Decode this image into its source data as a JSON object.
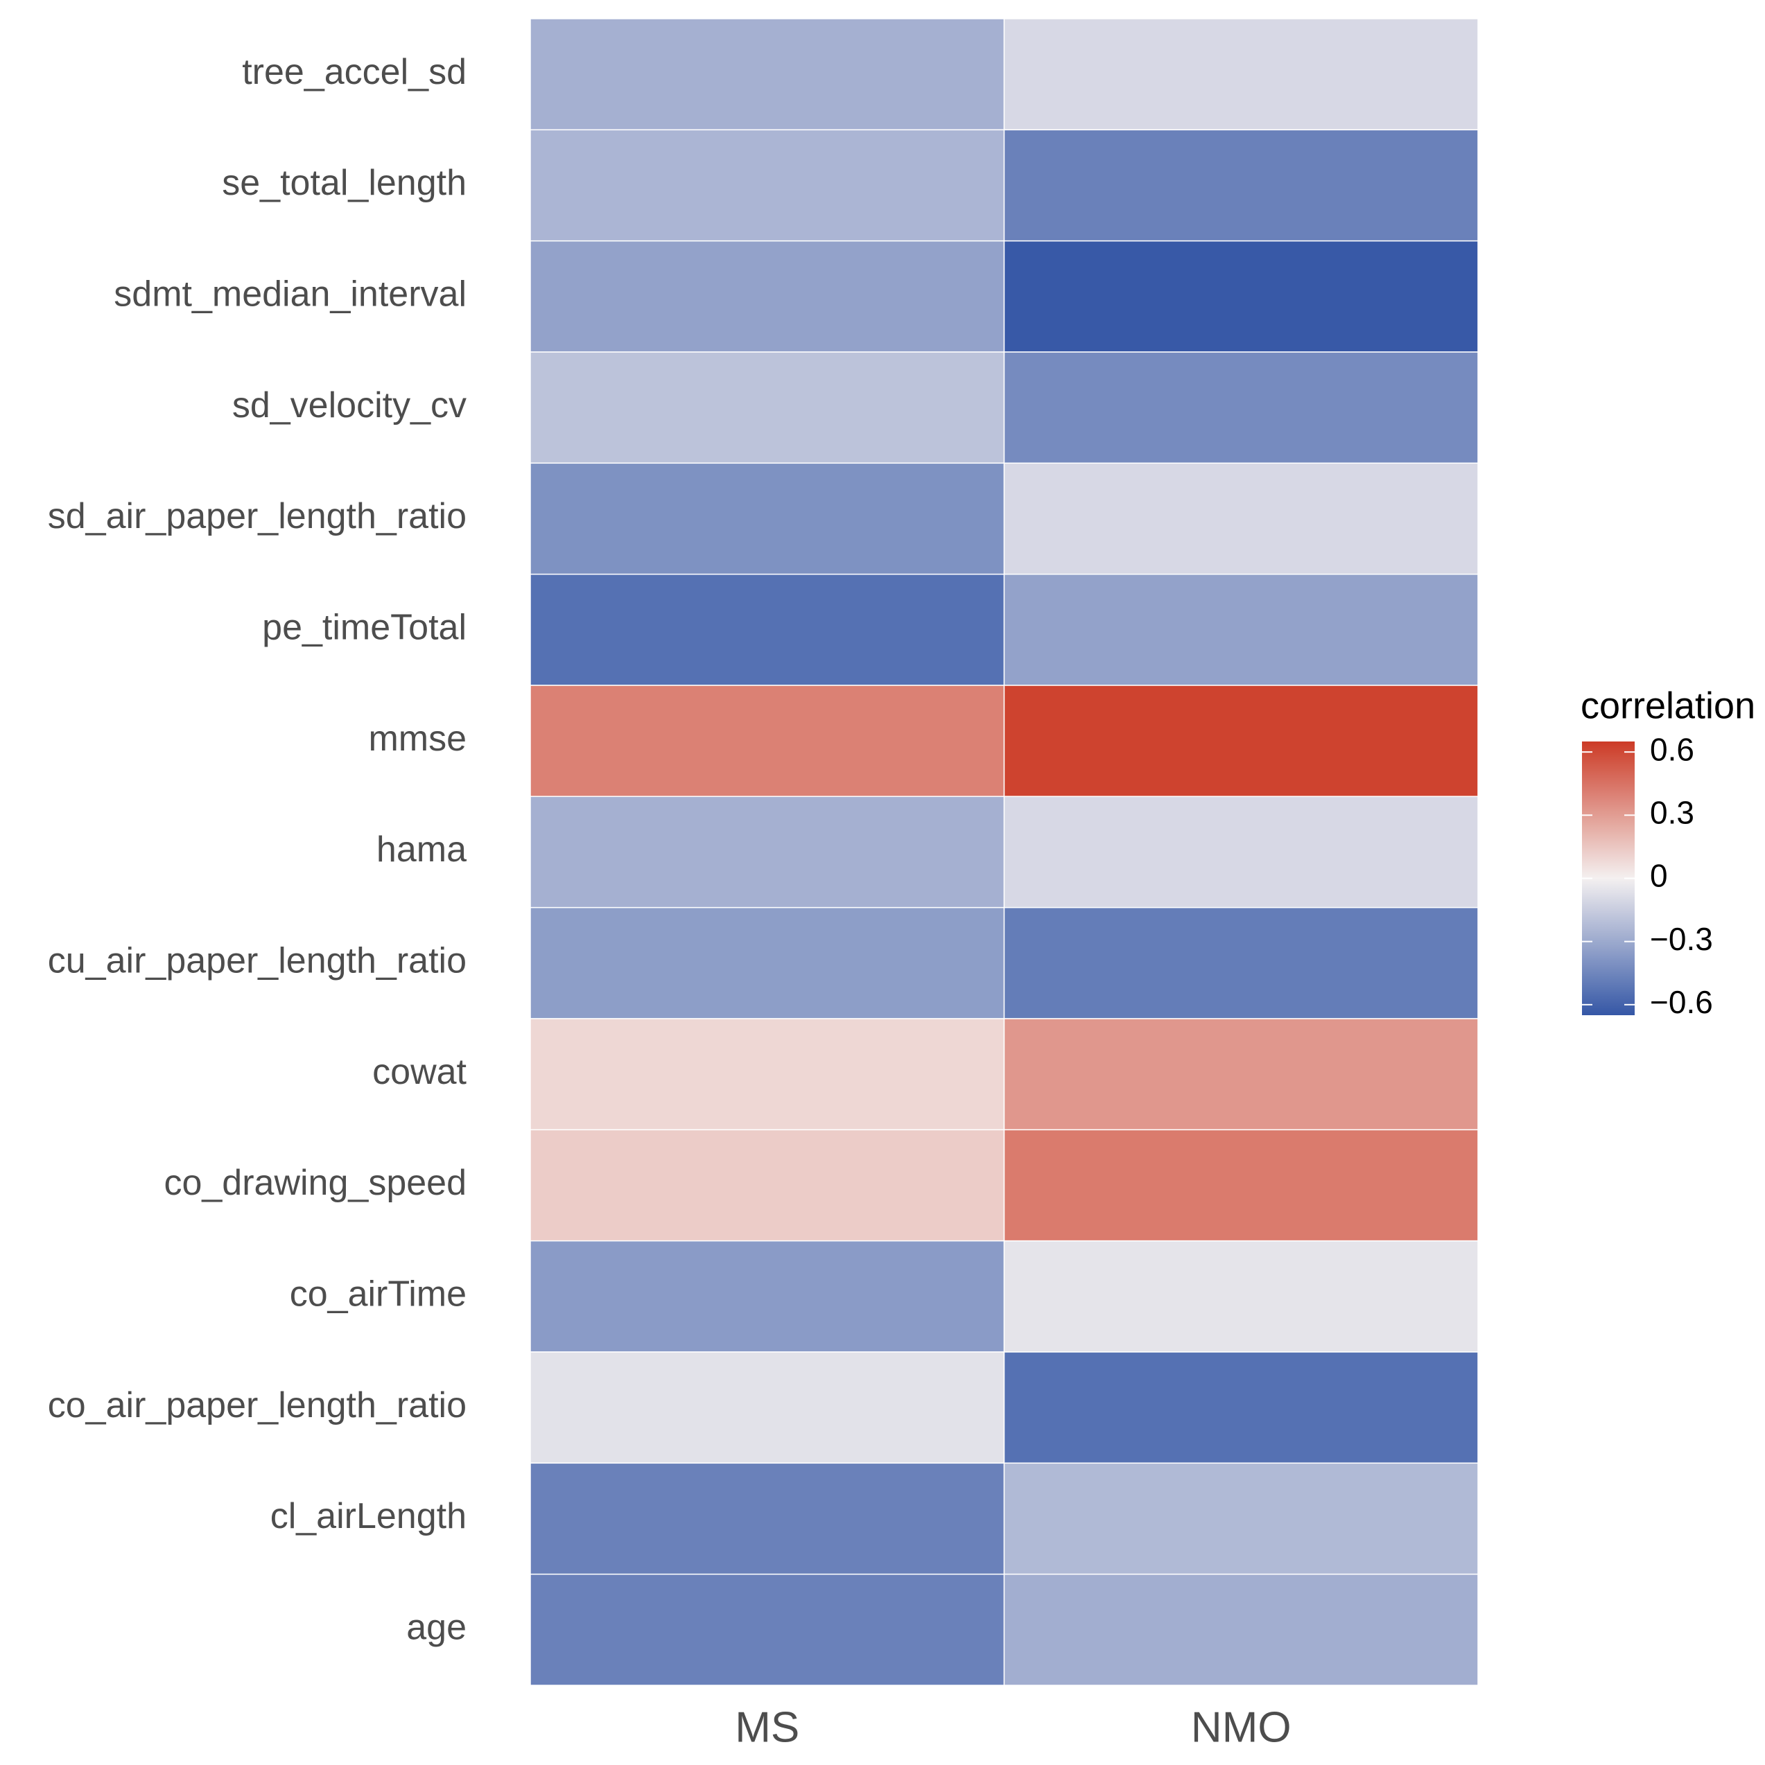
{
  "chart_data": {
    "type": "heatmap",
    "title": "",
    "xlabel": "",
    "ylabel": "",
    "columns": [
      "MS",
      "NMO"
    ],
    "rows": [
      "tree_accel_sd",
      "se_total_length",
      "sdmt_median_interval",
      "sd_velocity_cv",
      "sd_air_paper_length_ratio",
      "pe_timeTotal",
      "mmse",
      "hama",
      "cu_air_paper_length_ratio",
      "cowat",
      "co_drawing_speed",
      "co_airTime",
      "co_air_paper_length_ratio",
      "cl_airLength",
      "age"
    ],
    "values": [
      [
        -0.27,
        -0.1
      ],
      [
        -0.25,
        -0.47
      ],
      [
        -0.33,
        -0.64
      ],
      [
        -0.19,
        -0.43
      ],
      [
        -0.4,
        -0.1
      ],
      [
        -0.54,
        -0.33
      ],
      [
        0.4,
        0.62
      ],
      [
        -0.27,
        -0.1
      ],
      [
        -0.35,
        -0.49
      ],
      [
        0.09,
        0.32
      ],
      [
        0.13,
        0.42
      ],
      [
        -0.36,
        -0.05
      ],
      [
        -0.06,
        -0.54
      ],
      [
        -0.47,
        -0.23
      ],
      [
        -0.47,
        -0.28
      ]
    ],
    "legend": {
      "title": "correlation",
      "ticks": [
        0.6,
        0.3,
        0,
        -0.3,
        -0.6
      ],
      "tick_labels": [
        "0.6",
        "0.3",
        "0",
        "−0.3",
        "−0.6"
      ],
      "range": [
        -0.65,
        0.65
      ],
      "position": "right"
    },
    "colors": {
      "low": "#3557a6",
      "mid": "#f4f0f0",
      "high": "#cc3b26"
    }
  }
}
